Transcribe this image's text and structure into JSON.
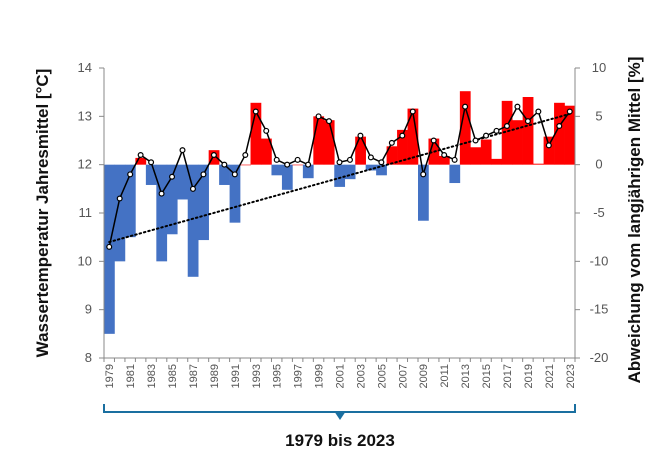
{
  "chart_data": {
    "type": "bar+line",
    "x": [
      1979,
      1980,
      1981,
      1982,
      1983,
      1984,
      1985,
      1986,
      1987,
      1988,
      1989,
      1990,
      1991,
      1992,
      1993,
      1994,
      1995,
      1996,
      1997,
      1998,
      1999,
      2000,
      2001,
      2002,
      2003,
      2004,
      2005,
      2006,
      2007,
      2008,
      2009,
      2010,
      2011,
      2012,
      2013,
      2014,
      2015,
      2016,
      2017,
      2018,
      2019,
      2020,
      2021,
      2022,
      2023
    ],
    "x_tick_labels": [
      "1979",
      "1981",
      "1983",
      "1985",
      "1987",
      "1989",
      "1991",
      "1993",
      "1995",
      "1997",
      "1999",
      "2001",
      "2003",
      "2005",
      "2007",
      "2009",
      "2011",
      "2013",
      "2015",
      "2017",
      "2019",
      "2021",
      "2023"
    ],
    "series": [
      {
        "kind": "line",
        "axis": "left",
        "values": [
          10.3,
          11.3,
          11.8,
          12.2,
          12.05,
          11.4,
          11.75,
          12.3,
          11.5,
          11.8,
          12.2,
          12.0,
          11.8,
          12.2,
          13.1,
          12.7,
          12.1,
          12.0,
          12.1,
          12.0,
          13.0,
          12.9,
          12.05,
          12.1,
          12.6,
          12.15,
          12.05,
          12.45,
          12.6,
          13.1,
          11.8,
          12.5,
          12.2,
          12.1,
          13.2,
          12.5,
          12.6,
          12.7,
          12.8,
          13.2,
          12.9,
          13.1,
          12.4,
          12.8,
          13.1
        ]
      },
      {
        "kind": "bar",
        "axis": "right",
        "values": [
          -17.5,
          -10,
          -7.5,
          0.7,
          -2.1,
          -10,
          -7.2,
          -3.6,
          -11.6,
          -7.8,
          1.5,
          -2.1,
          -6,
          0,
          6.4,
          2.7,
          -1.1,
          -2.6,
          0,
          -1.4,
          5,
          4.6,
          -2.3,
          -1.5,
          2.9,
          -0.6,
          -1.1,
          1.9,
          3.6,
          5.8,
          -5.8,
          2.7,
          0.9,
          -1.9,
          7.6,
          1.8,
          2.6,
          0.6,
          6.6,
          4.6,
          7,
          0.1,
          2.9,
          6.4,
          6.1
        ]
      },
      {
        "kind": "trend",
        "axis": "left",
        "start": 10.4,
        "end": 13.05
      }
    ],
    "y_left": {
      "label": "Wassertemperatur Jahresmittel [°C]",
      "ticks": [
        "8",
        "9",
        "10",
        "11",
        "12",
        "13",
        "14"
      ],
      "ylim": [
        8,
        14
      ]
    },
    "y_right": {
      "label": "Abweichung vom langjährigen Mittel [%]",
      "ticks": [
        "-20",
        "-15",
        "-10",
        "-5",
        "0",
        "5",
        "10"
      ],
      "ylim": [
        -20,
        10
      ]
    },
    "range_label": "1979 bis 2023",
    "colors": {
      "positive": "#ff0000",
      "negative": "#4472c4",
      "line": "#000000",
      "bracket": "#1a6fa0",
      "axis": "#888888"
    },
    "grid": false
  }
}
